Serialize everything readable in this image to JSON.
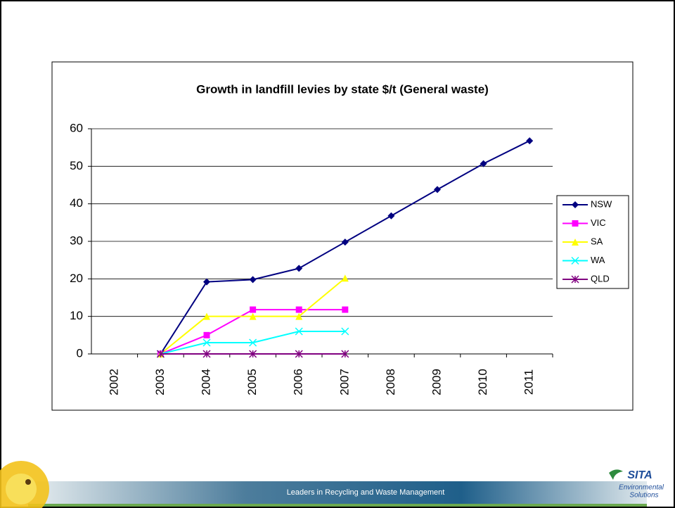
{
  "chart_data": {
    "type": "line",
    "title": "Growth in landfill levies by state $/t (General waste)",
    "categories": [
      "2002",
      "2003",
      "2004",
      "2005",
      "2006",
      "2007",
      "2008",
      "2009",
      "2010",
      "2011"
    ],
    "series": [
      {
        "name": "NSW",
        "color": "#000080",
        "marker": "diamond",
        "values": [
          null,
          0,
          19.2,
          19.8,
          22.8,
          29.8,
          36.8,
          43.8,
          50.7,
          56.8
        ]
      },
      {
        "name": "VIC",
        "color": "#ff00ff",
        "marker": "square",
        "values": [
          null,
          0,
          5,
          11.8,
          11.8,
          11.8,
          null,
          null,
          null,
          null
        ]
      },
      {
        "name": "SA",
        "color": "#ffff00",
        "marker": "triangle",
        "values": [
          null,
          0,
          10,
          10,
          10,
          20.2,
          null,
          null,
          null,
          null
        ]
      },
      {
        "name": "WA",
        "color": "#00ffff",
        "marker": "x",
        "values": [
          null,
          0,
          3,
          3,
          6,
          6,
          null,
          null,
          null,
          null
        ]
      },
      {
        "name": "QLD",
        "color": "#800080",
        "marker": "star",
        "values": [
          null,
          0,
          0,
          0,
          0,
          0,
          null,
          null,
          null,
          null
        ]
      }
    ],
    "ylim": [
      0,
      60
    ],
    "yticks": [
      0,
      10,
      20,
      30,
      40,
      50,
      60
    ],
    "grid": true,
    "legend": "right"
  },
  "footer": {
    "tagline": "Leaders in Recycling and Waste Management",
    "logo": "SITA",
    "logo_sub1": "Environmental",
    "logo_sub2": "Solutions"
  }
}
